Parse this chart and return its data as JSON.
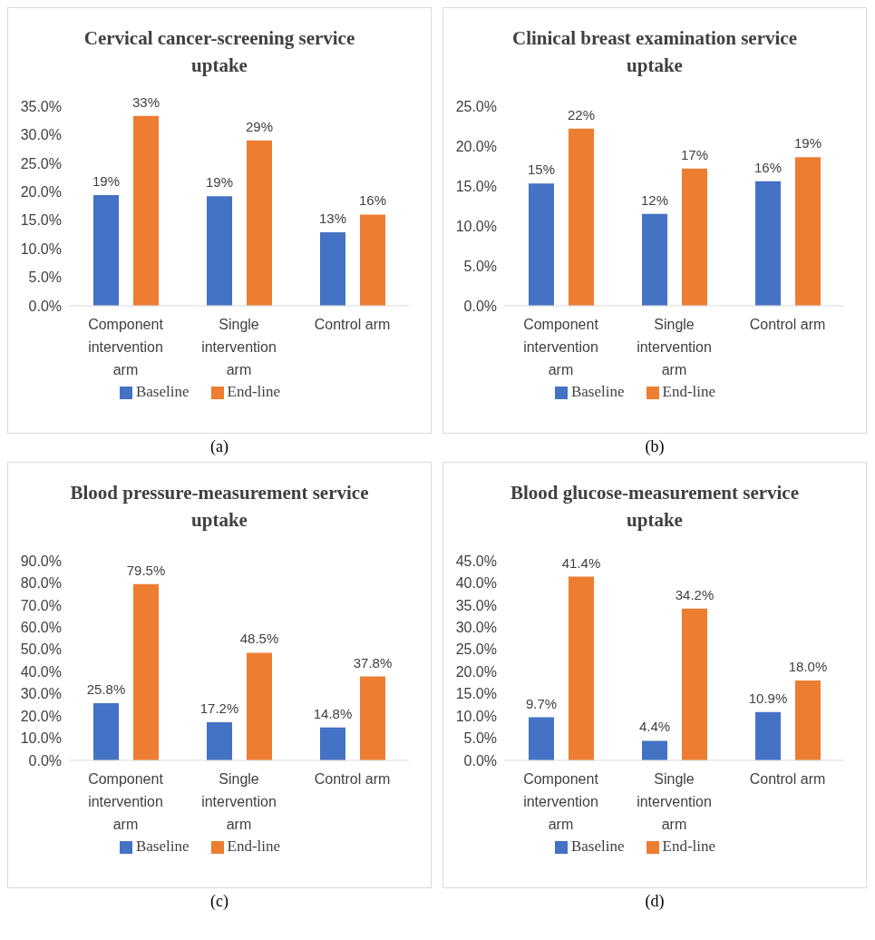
{
  "chart_data": [
    {
      "type": "bar",
      "title": "Cervical cancer-screening service uptake",
      "categories": [
        "Component intervention arm",
        "Single intervention arm",
        "Control arm"
      ],
      "series": [
        {
          "name": "Baseline",
          "color": "#4472c4",
          "values": [
            19.4,
            19.2,
            12.9
          ],
          "value_labels": [
            "19%",
            "19%",
            "13%"
          ]
        },
        {
          "name": "End-line",
          "color": "#ed7d31",
          "values": [
            33.3,
            29.0,
            16.0
          ],
          "value_labels": [
            "33%",
            "29%",
            "16%"
          ]
        }
      ],
      "ylim": [
        0,
        35
      ],
      "yticks": [
        {
          "value": 0,
          "label": "0.0%"
        },
        {
          "value": 5,
          "label": "5.0%"
        },
        {
          "value": 10,
          "label": "10.0%"
        },
        {
          "value": 15,
          "label": "15.0%"
        },
        {
          "value": 20,
          "label": "20.0%"
        },
        {
          "value": 25,
          "label": "25.0%"
        },
        {
          "value": 30,
          "label": "30.0%"
        },
        {
          "value": 35,
          "label": "35.0%"
        }
      ],
      "legend": "bottom",
      "grid": false,
      "annotations": [
        "(a)"
      ]
    },
    {
      "type": "bar",
      "title": "Clinical breast examination service uptake",
      "categories": [
        "Component intervention arm",
        "Single intervention arm",
        "Control arm"
      ],
      "series": [
        {
          "name": "Baseline",
          "color": "#4472c4",
          "values": [
            15.3,
            11.5,
            15.6
          ],
          "value_labels": [
            "15%",
            "12%",
            "16%"
          ]
        },
        {
          "name": "End-line",
          "color": "#ed7d31",
          "values": [
            22.2,
            17.2,
            18.6
          ],
          "value_labels": [
            "22%",
            "17%",
            "19%"
          ]
        }
      ],
      "ylim": [
        0,
        25
      ],
      "yticks": [
        {
          "value": 0,
          "label": "0.0%"
        },
        {
          "value": 5,
          "label": "5.0%"
        },
        {
          "value": 10,
          "label": "10.0%"
        },
        {
          "value": 15,
          "label": "15.0%"
        },
        {
          "value": 20,
          "label": "20.0%"
        },
        {
          "value": 25,
          "label": "25.0%"
        }
      ],
      "legend": "bottom",
      "grid": false,
      "annotations": [
        "(b)"
      ]
    },
    {
      "type": "bar",
      "title": "Blood pressure-measurement service uptake",
      "categories": [
        "Component intervention arm",
        "Single intervention arm",
        "Control arm"
      ],
      "series": [
        {
          "name": "Baseline",
          "color": "#4472c4",
          "values": [
            25.8,
            17.2,
            14.8
          ],
          "value_labels": [
            "25.8%",
            "17.2%",
            "14.8%"
          ]
        },
        {
          "name": "End-line",
          "color": "#ed7d31",
          "values": [
            79.5,
            48.5,
            37.8
          ],
          "value_labels": [
            "79.5%",
            "48.5%",
            "37.8%"
          ]
        }
      ],
      "ylim": [
        0,
        90
      ],
      "yticks": [
        {
          "value": 0,
          "label": "0.0%"
        },
        {
          "value": 10,
          "label": "10.0%"
        },
        {
          "value": 20,
          "label": "20.0%"
        },
        {
          "value": 30,
          "label": "30.0%"
        },
        {
          "value": 40,
          "label": "40.0%"
        },
        {
          "value": 50,
          "label": "50.0%"
        },
        {
          "value": 60,
          "label": "60.0%"
        },
        {
          "value": 70,
          "label": "70.0%"
        },
        {
          "value": 80,
          "label": "80.0%"
        },
        {
          "value": 90,
          "label": "90.0%"
        }
      ],
      "legend": "bottom",
      "grid": false,
      "annotations": [
        "(c)"
      ]
    },
    {
      "type": "bar",
      "title": "Blood glucose-measurement service uptake",
      "categories": [
        "Component intervention arm",
        "Single intervention arm",
        "Control arm"
      ],
      "series": [
        {
          "name": "Baseline",
          "color": "#4472c4",
          "values": [
            9.7,
            4.4,
            10.9
          ],
          "value_labels": [
            "9.7%",
            "4.4%",
            "10.9%"
          ]
        },
        {
          "name": "End-line",
          "color": "#ed7d31",
          "values": [
            41.4,
            34.2,
            18.0
          ],
          "value_labels": [
            "41.4%",
            "34.2%",
            "18.0%"
          ]
        }
      ],
      "ylim": [
        0,
        45
      ],
      "yticks": [
        {
          "value": 0,
          "label": "0.0%"
        },
        {
          "value": 5,
          "label": "5.0%"
        },
        {
          "value": 10,
          "label": "10.0%"
        },
        {
          "value": 15,
          "label": "15.0%"
        },
        {
          "value": 20,
          "label": "20.0%"
        },
        {
          "value": 25,
          "label": "25.0%"
        },
        {
          "value": 30,
          "label": "30.0%"
        },
        {
          "value": 35,
          "label": "35.0%"
        },
        {
          "value": 40,
          "label": "40.0%"
        },
        {
          "value": 45,
          "label": "45.0%"
        }
      ],
      "legend": "bottom",
      "grid": false,
      "annotations": [
        "(d)"
      ]
    }
  ]
}
